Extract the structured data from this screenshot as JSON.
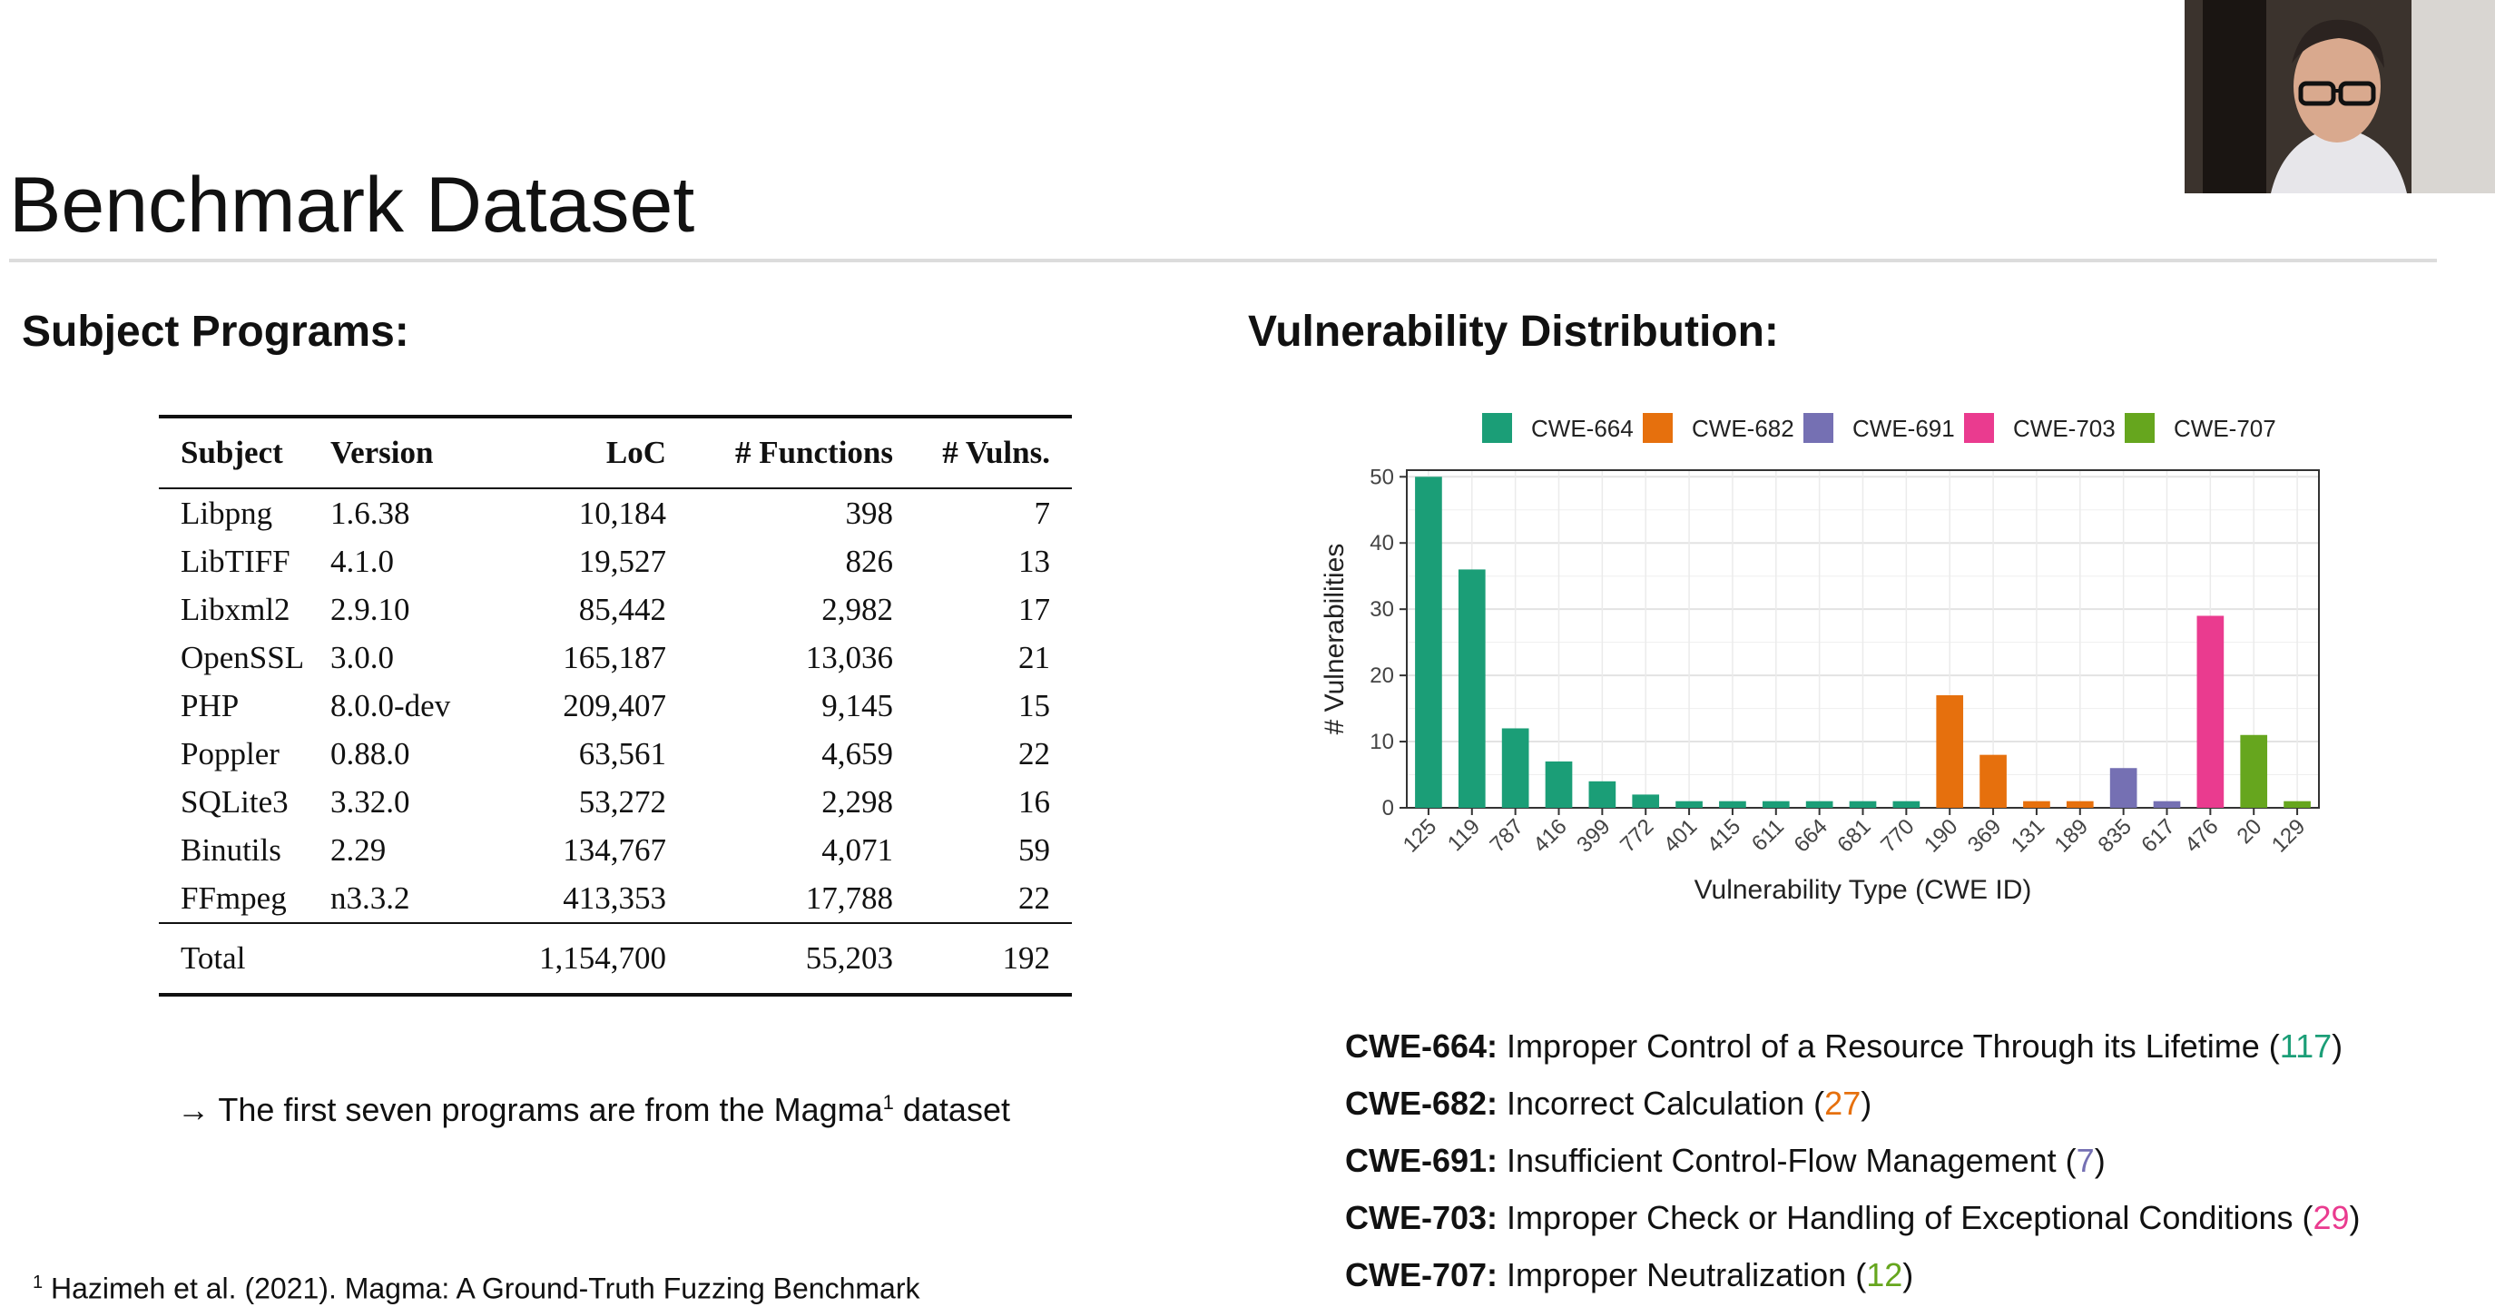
{
  "slide": {
    "title": "Benchmark Dataset",
    "subject_heading": "Subject Programs:",
    "vuln_heading": "Vulnerability Distribution:",
    "note_prefix": "→ The first seven programs are from the Magma",
    "note_sup": "1",
    "note_suffix": " dataset",
    "footnote_sup": "1",
    "footnote_text": " Hazimeh et al. (2021). Magma: A Ground-Truth Fuzzing Benchmark"
  },
  "table": {
    "headers": [
      "Subject",
      "Version",
      "LoC",
      "# Functions",
      "# Vulns."
    ],
    "rows": [
      [
        "Libpng",
        "1.6.38",
        "10,184",
        "398",
        "7"
      ],
      [
        "LibTIFF",
        "4.1.0",
        "19,527",
        "826",
        "13"
      ],
      [
        "Libxml2",
        "2.9.10",
        "85,442",
        "2,982",
        "17"
      ],
      [
        "OpenSSL",
        "3.0.0",
        "165,187",
        "13,036",
        "21"
      ],
      [
        "PHP",
        "8.0.0-dev",
        "209,407",
        "9,145",
        "15"
      ],
      [
        "Poppler",
        "0.88.0",
        "63,561",
        "4,659",
        "22"
      ],
      [
        "SQLite3",
        "3.32.0",
        "53,272",
        "2,298",
        "16"
      ],
      [
        "Binutils",
        "2.29",
        "134,767",
        "4,071",
        "59"
      ],
      [
        "FFmpeg",
        "n3.3.2",
        "413,353",
        "17,788",
        "22"
      ]
    ],
    "total": [
      "Total",
      "",
      "1,154,700",
      "55,203",
      "192"
    ]
  },
  "chart_data": {
    "type": "bar",
    "title": "",
    "xlabel": "Vulnerability Type (CWE ID)",
    "ylabel": "# Vulnerabilities",
    "ylim": [
      0,
      51
    ],
    "yticks": [
      0,
      10,
      20,
      30,
      40,
      50
    ],
    "legend_position": "top",
    "legend": [
      {
        "name": "CWE-664",
        "color": "#1b9e77"
      },
      {
        "name": "CWE-682",
        "color": "#e6700d"
      },
      {
        "name": "CWE-691",
        "color": "#7570b3"
      },
      {
        "name": "CWE-703",
        "color": "#ea3b8f"
      },
      {
        "name": "CWE-707",
        "color": "#66a61e"
      }
    ],
    "categories": [
      "125",
      "119",
      "787",
      "416",
      "399",
      "772",
      "401",
      "415",
      "611",
      "664",
      "681",
      "770",
      "190",
      "369",
      "131",
      "189",
      "835",
      "617",
      "476",
      "20",
      "129"
    ],
    "values": [
      50,
      36,
      12,
      7,
      4,
      2,
      1,
      1,
      1,
      1,
      1,
      1,
      17,
      8,
      1,
      1,
      6,
      1,
      29,
      11,
      1
    ],
    "groups": [
      "CWE-664",
      "CWE-664",
      "CWE-664",
      "CWE-664",
      "CWE-664",
      "CWE-664",
      "CWE-664",
      "CWE-664",
      "CWE-664",
      "CWE-664",
      "CWE-664",
      "CWE-664",
      "CWE-682",
      "CWE-682",
      "CWE-682",
      "CWE-682",
      "CWE-691",
      "CWE-691",
      "CWE-703",
      "CWE-707",
      "CWE-707"
    ]
  },
  "cwe_definitions": [
    {
      "id": "CWE-664:",
      "text": " Improper Control of a Resource Through its Lifetime (",
      "count": "117",
      "close": ")",
      "color": "#1b9e77"
    },
    {
      "id": "CWE-682:",
      "text": " Incorrect Calculation (",
      "count": "27",
      "close": ")",
      "color": "#e6700d"
    },
    {
      "id": "CWE-691:",
      "text": " Insufficient Control-Flow Management (",
      "count": "7",
      "close": ")",
      "color": "#7570b3"
    },
    {
      "id": "CWE-703:",
      "text": " Improper Check or Handling of Exceptional Conditions (",
      "count": "29",
      "close": ")",
      "color": "#ea3b8f"
    },
    {
      "id": "CWE-707:",
      "text": " Improper Neutralization (",
      "count": "12",
      "close": ")",
      "color": "#66a61e"
    }
  ]
}
